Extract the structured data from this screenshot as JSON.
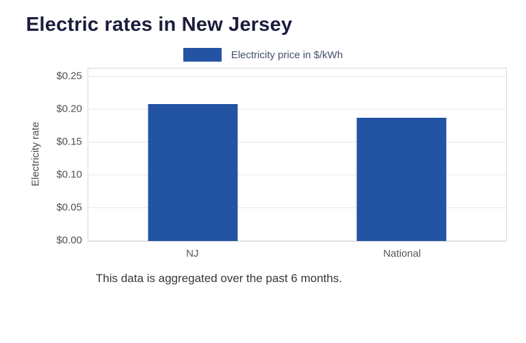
{
  "page": {
    "title": "Electric rates in New Jersey",
    "caption": "This data is aggregated over the past 6 months."
  },
  "chart_data": {
    "type": "bar",
    "title": "Electric rates in New Jersey",
    "series_label": "Electricity price in $/kWh",
    "categories": [
      "NJ",
      "National"
    ],
    "values": [
      0.208,
      0.188
    ],
    "xlabel": "",
    "ylabel": "Electricity rate",
    "ylim": [
      0,
      0.25
    ],
    "yticks": [
      0,
      0.05,
      0.1,
      0.15,
      0.2,
      0.25
    ],
    "ytick_labels": [
      "$0.00",
      "$0.05",
      "$0.10",
      "$0.15",
      "$0.20",
      "$0.25"
    ],
    "bar_color": "#2353a3",
    "grid": true,
    "legend_position": "top"
  }
}
